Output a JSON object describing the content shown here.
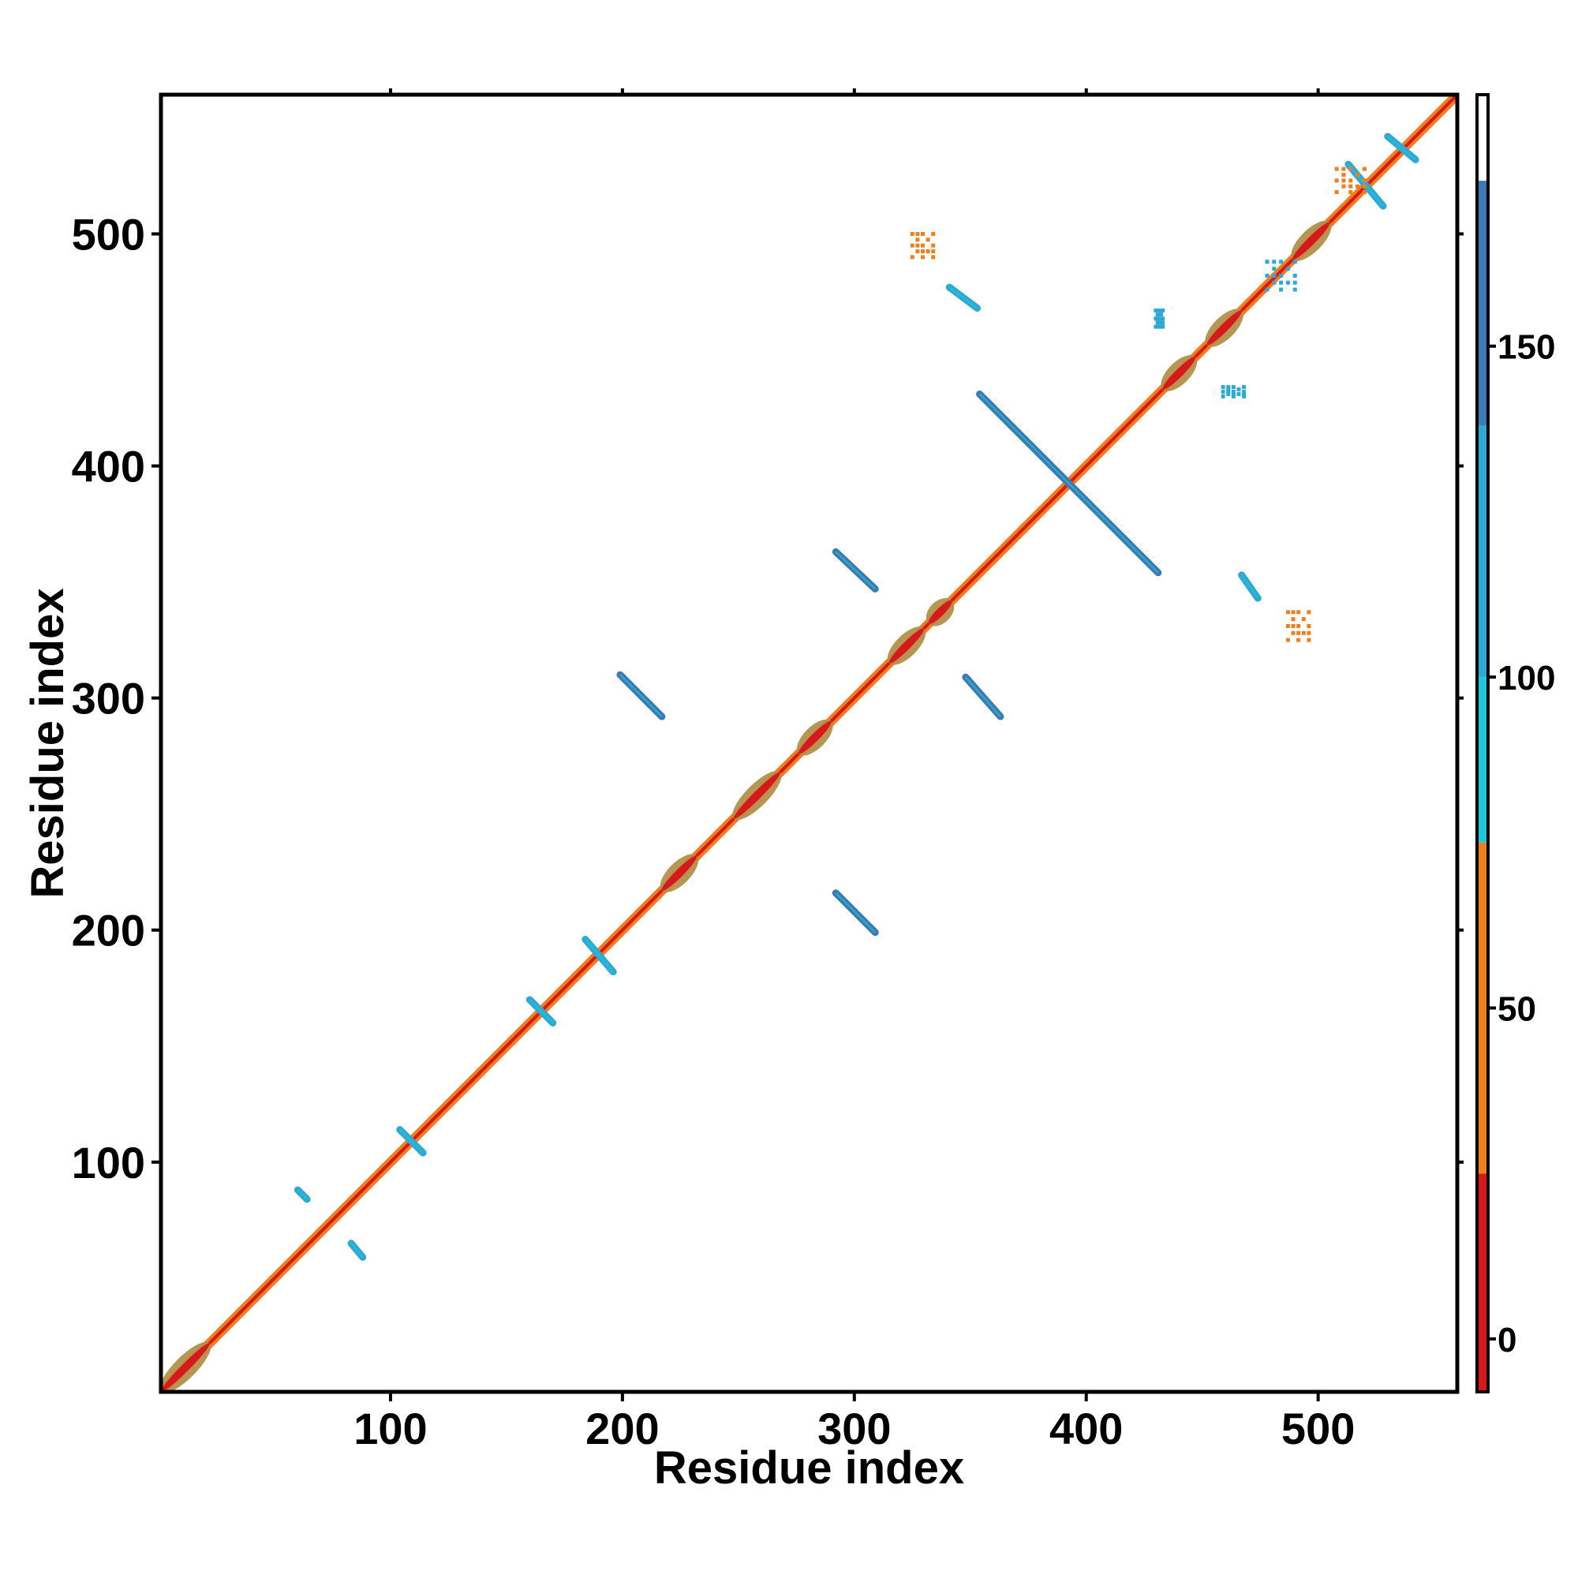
{
  "chart_data": {
    "type": "heatmap",
    "xlabel": "Residue index",
    "ylabel": "Residue index",
    "xlim": [
      1,
      560
    ],
    "ylim": [
      1,
      560
    ],
    "x_ticks": [
      100,
      200,
      300,
      400,
      500
    ],
    "y_ticks": [
      100,
      200,
      300,
      400,
      500
    ],
    "grid": false,
    "colorbar": {
      "range": [
        -8,
        188
      ],
      "ticks": [
        0,
        50,
        100,
        150
      ],
      "segments": [
        {
          "from": -8,
          "to": 25,
          "color": "#d7191c"
        },
        {
          "from": 25,
          "to": 75,
          "color": "#ee7f1e"
        },
        {
          "from": 75,
          "to": 100,
          "color": "#1ec8d8"
        },
        {
          "from": 100,
          "to": 138,
          "color": "#2fa8d4"
        },
        {
          "from": 138,
          "to": 175,
          "color": "#3d7ab4"
        },
        {
          "from": 175,
          "to": 188,
          "color": "#ffffff"
        }
      ]
    },
    "diagonal_helix_blocks": [
      [
        1,
        22
      ],
      [
        217,
        232
      ],
      [
        248,
        268
      ],
      [
        276,
        290
      ],
      [
        315,
        330
      ],
      [
        332,
        342
      ],
      [
        433,
        447
      ],
      [
        452,
        467
      ],
      [
        489,
        505
      ]
    ],
    "beta_sheet_contacts": [
      {
        "x": [
          60,
          64
        ],
        "y": [
          88,
          84
        ],
        "value": 118,
        "orientation": "anti"
      },
      {
        "x": [
          83,
          88
        ],
        "y": [
          65,
          59
        ],
        "value": 118,
        "orientation": "anti"
      },
      {
        "x": [
          104,
          114
        ],
        "y": [
          114,
          104
        ],
        "value": 120,
        "orientation": "anti"
      },
      {
        "x": [
          160,
          170
        ],
        "y": [
          170,
          160
        ],
        "value": 120,
        "orientation": "anti"
      },
      {
        "x": [
          184,
          196
        ],
        "y": [
          196,
          182
        ],
        "value": 120,
        "orientation": "anti"
      },
      {
        "x": [
          199,
          217
        ],
        "y": [
          310,
          292
        ],
        "value": 140,
        "orientation": "anti"
      },
      {
        "x": [
          292,
          309
        ],
        "y": [
          216,
          199
        ],
        "value": 140,
        "orientation": "anti"
      },
      {
        "x": [
          292,
          309
        ],
        "y": [
          363,
          347
        ],
        "value": 140,
        "orientation": "anti"
      },
      {
        "x": [
          348,
          363
        ],
        "y": [
          309,
          292
        ],
        "value": 140,
        "orientation": "anti"
      },
      {
        "x": [
          354,
          431
        ],
        "y": [
          431,
          354
        ],
        "value": 155,
        "orientation": "anti"
      },
      {
        "x": [
          341,
          353
        ],
        "y": [
          477,
          468
        ],
        "value": 118,
        "orientation": "anti"
      },
      {
        "x": [
          467,
          474
        ],
        "y": [
          353,
          343
        ],
        "value": 118,
        "orientation": "anti"
      },
      {
        "x": [
          513,
          528
        ],
        "y": [
          530,
          512
        ],
        "value": 120,
        "orientation": "anti"
      },
      {
        "x": [
          530,
          542
        ],
        "y": [
          542,
          532
        ],
        "value": 120,
        "orientation": "anti"
      }
    ],
    "scattered_contacts": [
      {
        "x": [
          325,
          334
        ],
        "y": [
          490,
          500
        ],
        "value": 40
      },
      {
        "x": [
          487,
          496
        ],
        "y": [
          325,
          337
        ],
        "value": 40
      },
      {
        "x": [
          430,
          433
        ],
        "y": [
          460,
          467
        ],
        "value": 118
      },
      {
        "x": [
          459,
          468
        ],
        "y": [
          430,
          434
        ],
        "value": 118
      },
      {
        "x": [
          508,
          520
        ],
        "y": [
          518,
          528
        ],
        "value": 40
      },
      {
        "x": [
          478,
          490
        ],
        "y": [
          476,
          488
        ],
        "value": 118
      }
    ]
  }
}
